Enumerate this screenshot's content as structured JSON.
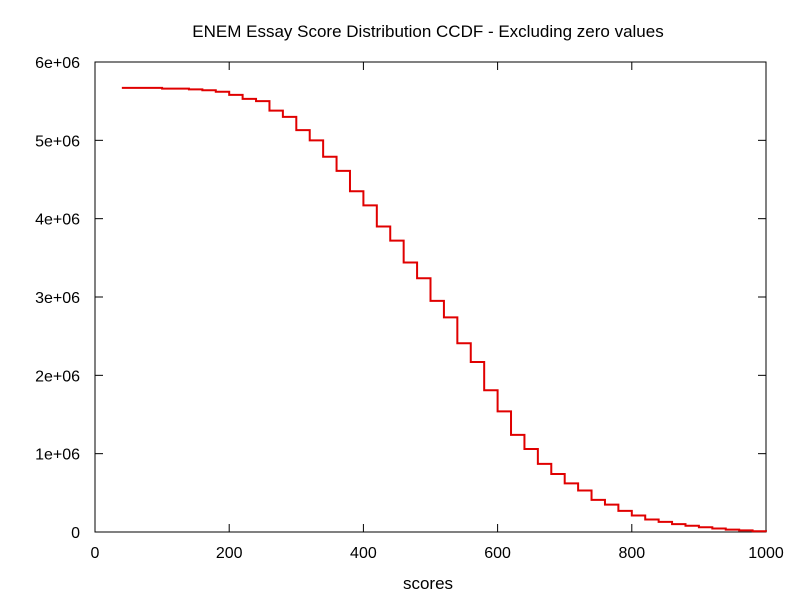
{
  "chart_data": {
    "type": "line",
    "title": "ENEM Essay Score Distribution CCDF - Excluding zero values",
    "xlabel": "scores",
    "ylabel": "",
    "xlim": [
      0,
      1000
    ],
    "ylim": [
      0,
      6000000
    ],
    "grid": false,
    "legend": "none",
    "x_ticks": [
      {
        "value": 0,
        "label": "0"
      },
      {
        "value": 200,
        "label": "200"
      },
      {
        "value": 400,
        "label": "400"
      },
      {
        "value": 600,
        "label": "600"
      },
      {
        "value": 800,
        "label": "800"
      },
      {
        "value": 1000,
        "label": "1000"
      }
    ],
    "y_ticks": [
      {
        "value": 0,
        "label": "0"
      },
      {
        "value": 1000000,
        "label": "1e+06"
      },
      {
        "value": 2000000,
        "label": "2e+06"
      },
      {
        "value": 3000000,
        "label": "3e+06"
      },
      {
        "value": 4000000,
        "label": "4e+06"
      },
      {
        "value": 5000000,
        "label": "5e+06"
      },
      {
        "value": 6000000,
        "label": "6e+06"
      }
    ],
    "series": [
      {
        "color": "#e00000",
        "step": true,
        "x": [
          40,
          60,
          80,
          100,
          120,
          140,
          160,
          180,
          200,
          220,
          240,
          260,
          280,
          300,
          320,
          340,
          360,
          380,
          400,
          420,
          440,
          460,
          480,
          500,
          520,
          540,
          560,
          580,
          600,
          620,
          640,
          660,
          680,
          700,
          720,
          740,
          760,
          780,
          800,
          820,
          840,
          860,
          880,
          900,
          920,
          940,
          960,
          980,
          1000
        ],
        "y": [
          5670000,
          5670000,
          5670000,
          5660000,
          5660000,
          5650000,
          5640000,
          5620000,
          5580000,
          5530000,
          5500000,
          5380000,
          5300000,
          5130000,
          5000000,
          4790000,
          4610000,
          4350000,
          4170000,
          3900000,
          3720000,
          3440000,
          3240000,
          2950000,
          2740000,
          2410000,
          2170000,
          1810000,
          1540000,
          1240000,
          1060000,
          870000,
          740000,
          620000,
          530000,
          410000,
          350000,
          270000,
          210000,
          160000,
          130000,
          100000,
          80000,
          60000,
          45000,
          30000,
          20000,
          10000,
          5000
        ]
      }
    ]
  }
}
